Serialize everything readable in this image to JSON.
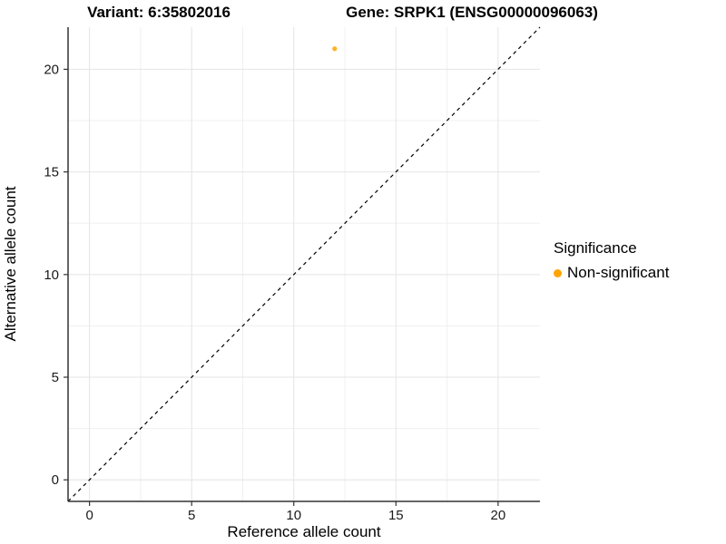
{
  "titles": {
    "variant": "Variant: 6:35802016",
    "gene": "Gene: SRPK1 (ENSG00000096063)"
  },
  "chart_data": {
    "type": "scatter",
    "title_left": "Variant: 6:35802016",
    "title_right": "Gene: SRPK1 (ENSG00000096063)",
    "xlabel": "Reference allele count",
    "ylabel": "Alternative allele count",
    "xlim": [
      -1.05,
      22.05
    ],
    "ylim": [
      -1.05,
      22.05
    ],
    "x_ticks": [
      0,
      5,
      10,
      15,
      20
    ],
    "y_ticks": [
      0,
      5,
      10,
      15,
      20
    ],
    "x_minor_gridlines": [
      2.5,
      7.5,
      12.5,
      17.5
    ],
    "y_minor_gridlines": [
      2.5,
      7.5,
      12.5,
      17.5
    ],
    "grid": true,
    "points": [
      {
        "x": 12,
        "y": 21,
        "series": "Non-significant"
      }
    ],
    "identity_line": {
      "style": "dashed",
      "from": [
        -1.05,
        -1.05
      ],
      "to": [
        22.05,
        22.05
      ],
      "color": "#000000"
    },
    "legend": {
      "title": "Significance",
      "position": "right",
      "items": [
        {
          "label": "Non-significant",
          "color": "#FFA500"
        }
      ]
    },
    "colors": {
      "point": "#FFA500",
      "major_grid": "#E4E4E4",
      "minor_grid": "#F0F0F0",
      "axis_line": "#333333",
      "tick_label": "#1a1a1a"
    }
  },
  "legend": {
    "title": "Significance",
    "item_label": "Non-significant"
  },
  "axes": {
    "x_label": "Reference allele count",
    "y_label": "Alternative allele count"
  }
}
